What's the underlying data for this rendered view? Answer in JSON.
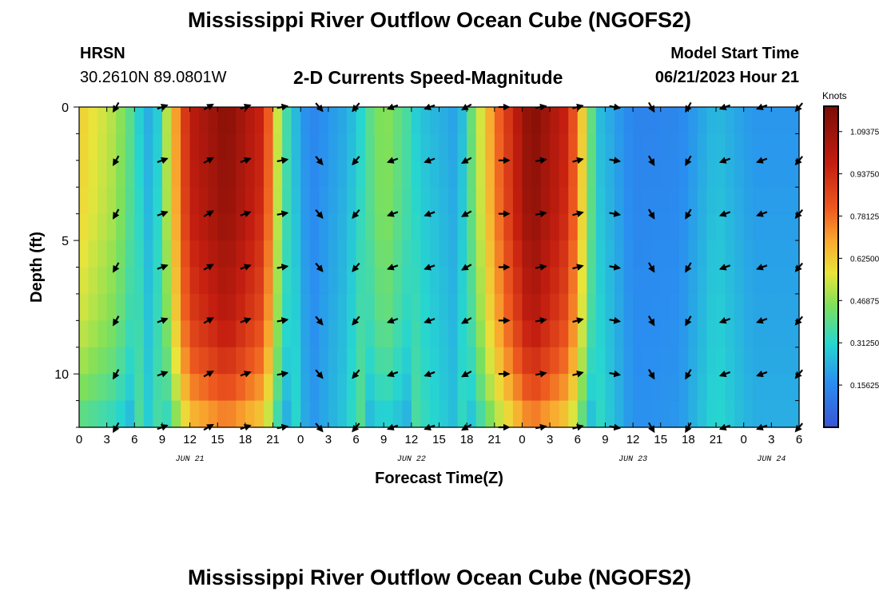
{
  "header": {
    "title": "Mississippi River Outflow Ocean Cube (NGOFS2)",
    "station": "HRSN",
    "coordinates": "30.2610N  89.0801W",
    "subtitle": "2-D Currents Speed-Magnitude",
    "model_start_label": "Model Start Time",
    "model_start_value": "06/21/2023 Hour 21"
  },
  "footer": {
    "title": "Mississippi River Outflow Ocean Cube (NGOFS2)"
  },
  "chart_data": {
    "type": "heatmap",
    "xlabel": "Forecast Time(Z)",
    "ylabel": "Depth (ft)",
    "x_unit": "hours since 06/21 00Z",
    "xlim": [
      0,
      78
    ],
    "ylim": [
      12,
      0
    ],
    "x_tick_labels": [
      "0",
      "3",
      "6",
      "9",
      "12",
      "15",
      "18",
      "21",
      "0",
      "3",
      "6",
      "9",
      "12",
      "15",
      "18",
      "21",
      "0",
      "3",
      "6",
      "9",
      "12",
      "15",
      "18",
      "21",
      "0",
      "3",
      "6"
    ],
    "date_labels": [
      {
        "x": 12,
        "text": "JUN 21"
      },
      {
        "x": 36,
        "text": "JUN 22"
      },
      {
        "x": 60,
        "text": "JUN 23"
      },
      {
        "x": 75,
        "text": "JUN 24"
      }
    ],
    "y_ticks": [
      0,
      5,
      10
    ],
    "colorbar": {
      "label": "Knots",
      "range": [
        0,
        1.1875
      ],
      "ticks": [
        0.15625,
        0.3125,
        0.46875,
        0.625,
        0.78125,
        0.9375,
        1.09375
      ],
      "tick_labels": [
        "0.15625",
        "0.31250",
        "0.46875",
        "0.62500",
        "0.78125",
        "0.93750",
        "1.09375"
      ]
    },
    "speed_peaks_knots": [
      {
        "time": 0,
        "speed": 0.62
      },
      {
        "time": 4,
        "speed": 0.5
      },
      {
        "time": 8,
        "speed": 0.22
      },
      {
        "time": 12,
        "speed": 1.0
      },
      {
        "time": 16,
        "speed": 1.15
      },
      {
        "time": 20,
        "speed": 0.95
      },
      {
        "time": 22,
        "speed": 0.4
      },
      {
        "time": 25,
        "speed": 0.15
      },
      {
        "time": 29,
        "speed": 0.25
      },
      {
        "time": 33,
        "speed": 0.48
      },
      {
        "time": 37,
        "speed": 0.3
      },
      {
        "time": 41,
        "speed": 0.22
      },
      {
        "time": 45,
        "speed": 0.75
      },
      {
        "time": 49,
        "speed": 1.17
      },
      {
        "time": 53,
        "speed": 0.95
      },
      {
        "time": 56,
        "speed": 0.3
      },
      {
        "time": 60,
        "speed": 0.15
      },
      {
        "time": 65,
        "speed": 0.16
      },
      {
        "time": 69,
        "speed": 0.28
      },
      {
        "time": 73,
        "speed": 0.2
      },
      {
        "time": 77,
        "speed": 0.2
      }
    ],
    "depth_profile": [
      {
        "depth": 0,
        "factor": 1.0
      },
      {
        "depth": 4,
        "factor": 0.97
      },
      {
        "depth": 8,
        "factor": 0.88
      },
      {
        "depth": 10,
        "factor": 0.78
      },
      {
        "depth": 12,
        "factor": 0.62
      }
    ],
    "vector_rows_depth_ft": [
      0,
      2,
      4,
      6,
      8,
      10,
      12
    ],
    "vectors": [
      {
        "time": 4,
        "dir": 210
      },
      {
        "time": 9,
        "dir": 70
      },
      {
        "time": 14,
        "dir": 60
      },
      {
        "time": 18,
        "dir": 70
      },
      {
        "time": 22,
        "dir": 80
      },
      {
        "time": 26,
        "dir": 140
      },
      {
        "time": 30,
        "dir": 220
      },
      {
        "time": 34,
        "dir": 250
      },
      {
        "time": 38,
        "dir": 250
      },
      {
        "time": 42,
        "dir": 240
      },
      {
        "time": 46,
        "dir": 90
      },
      {
        "time": 50,
        "dir": 80
      },
      {
        "time": 54,
        "dir": 75
      },
      {
        "time": 58,
        "dir": 100
      },
      {
        "time": 62,
        "dir": 150
      },
      {
        "time": 66,
        "dir": 210
      },
      {
        "time": 70,
        "dir": 250
      },
      {
        "time": 74,
        "dir": 250
      },
      {
        "time": 78,
        "dir": 220
      }
    ]
  }
}
